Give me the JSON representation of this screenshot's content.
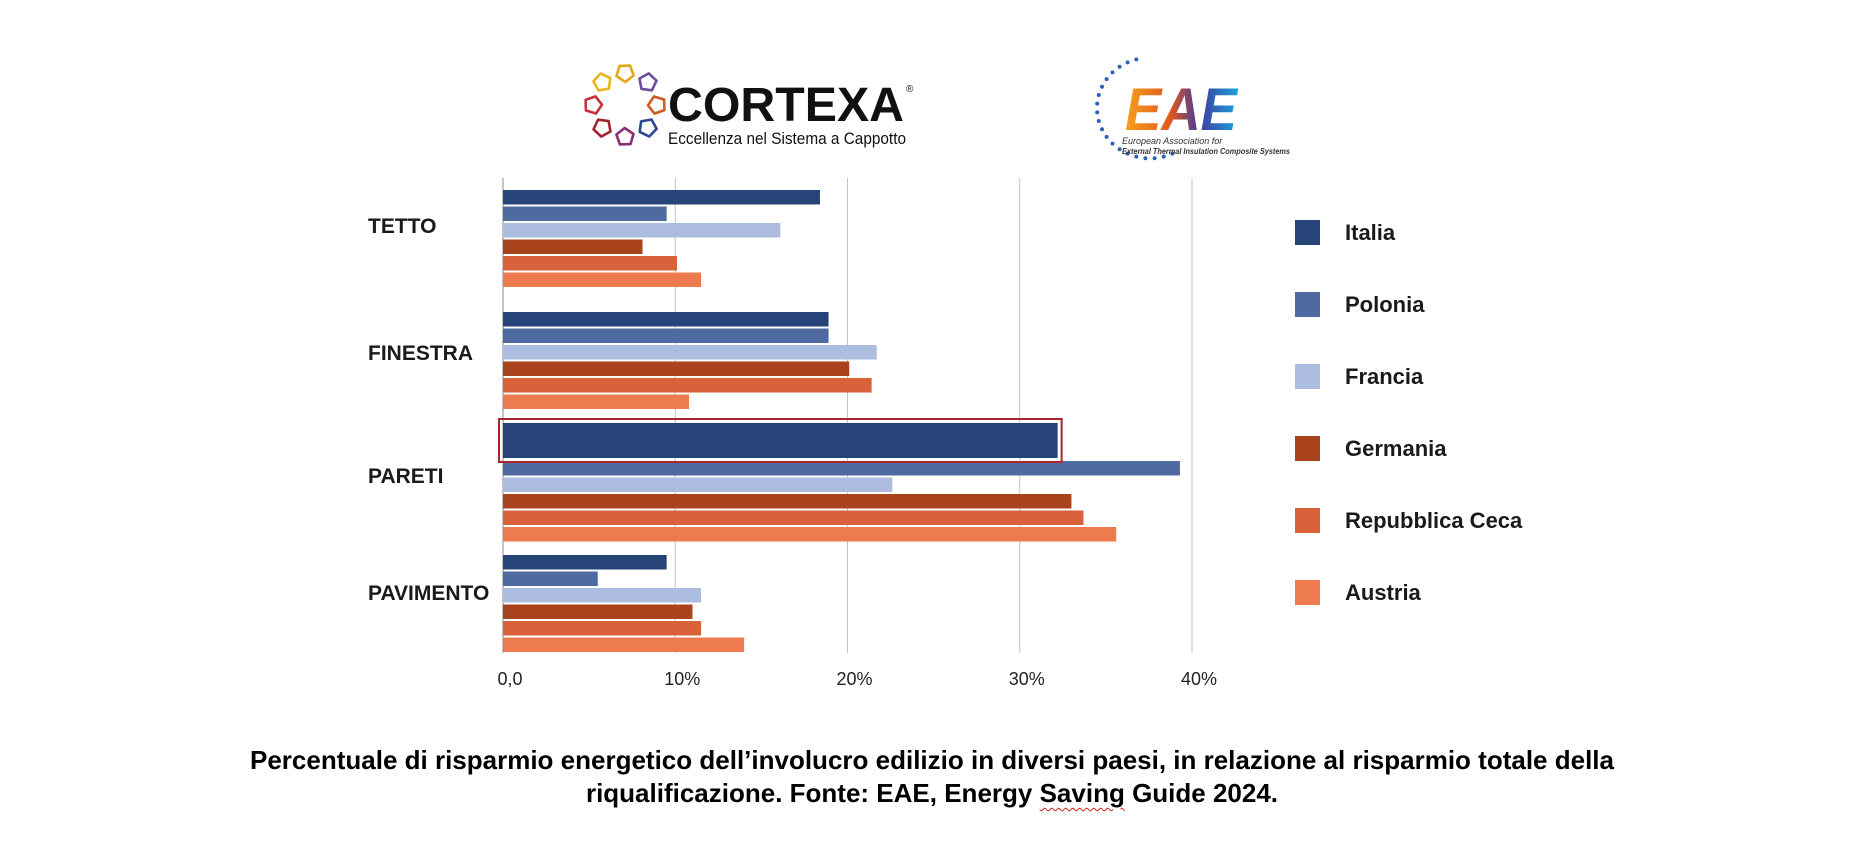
{
  "logos": {
    "cortexa_name": "CORTEXA",
    "cortexa_tagline": "Eccellenza nel Sistema a Cappotto",
    "eae_name": "EAE",
    "eae_line1": "European Association for",
    "eae_line2": "External Thermal Insulation Composite Systems"
  },
  "caption": {
    "line1": "Percentuale di risparmio energetico dell’involucro edilizio in diversi paesi, in relazione al risparmio totale della",
    "line2_before": "riqualificazione. Fonte: EAE, Energy ",
    "line2_flagged": "Saving",
    "line2_after": " Guide 2024."
  },
  "chart_data": {
    "type": "bar",
    "orientation": "horizontal",
    "categories": [
      "TETTO",
      "FINESTRA",
      "PARETI",
      "PAVIMENTO"
    ],
    "series": [
      {
        "name": "Italia",
        "color": "#264478",
        "values": [
          18.4,
          18.9,
          32.2,
          9.5
        ]
      },
      {
        "name": "Polonia",
        "color": "#4f6aa0",
        "values": [
          9.5,
          18.9,
          39.3,
          5.5
        ]
      },
      {
        "name": "Francia",
        "color": "#adbde0",
        "values": [
          16.1,
          21.7,
          22.6,
          11.5
        ]
      },
      {
        "name": "Germania",
        "color": "#a9431e",
        "values": [
          8.1,
          20.1,
          33.0,
          11.0
        ]
      },
      {
        "name": "Repubblica Ceca",
        "color": "#d9623b",
        "values": [
          10.1,
          21.4,
          33.7,
          11.5
        ]
      },
      {
        "name": "Austria",
        "color": "#ee7b50",
        "values": [
          11.5,
          10.8,
          35.6,
          14.0
        ]
      }
    ],
    "xlim": [
      0,
      40
    ],
    "ticks": [
      0,
      10,
      20,
      30,
      40
    ],
    "tick_labels": [
      "0,0",
      "10%",
      "20%",
      "30%",
      "40%"
    ],
    "grid": true,
    "legend_position": "right",
    "highlight": {
      "category": "PARETI",
      "series": "Italia",
      "outline_color": "#a8262d"
    }
  }
}
